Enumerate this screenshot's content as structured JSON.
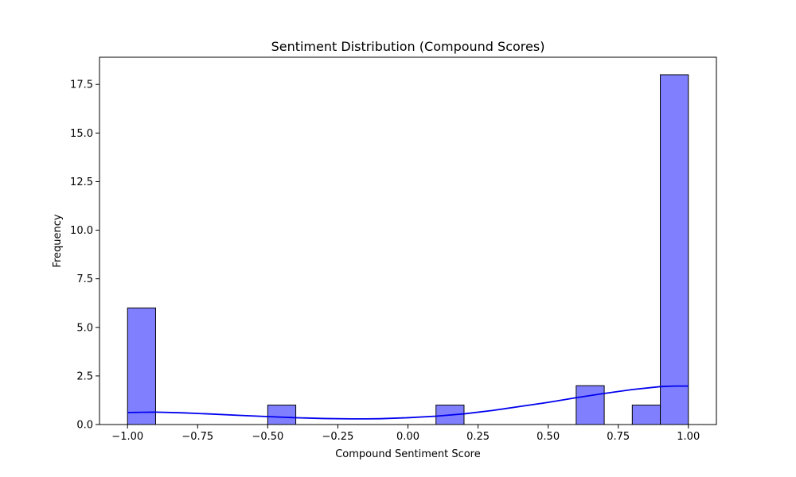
{
  "chart_data": {
    "type": "bar",
    "title": "Sentiment Distribution (Compound Scores)",
    "xlabel": "Compound Sentiment Score",
    "ylabel": "Frequency",
    "xlim": [
      -1.1,
      1.1
    ],
    "ylim": [
      0,
      18.9
    ],
    "xticks": [
      -1.0,
      -0.75,
      -0.5,
      -0.25,
      0.0,
      0.25,
      0.5,
      0.75,
      1.0
    ],
    "xtick_labels": [
      "−1.00",
      "−0.75",
      "−0.50",
      "−0.25",
      "0.00",
      "0.25",
      "0.50",
      "0.75",
      "1.00"
    ],
    "yticks": [
      0,
      2.5,
      5,
      7.5,
      10,
      12.5,
      15,
      17.5
    ],
    "ytick_labels": [
      "0.0",
      "2.5",
      "5.0",
      "7.5",
      "10.0",
      "12.5",
      "15.0",
      "17.5"
    ],
    "grid": false,
    "bar_color": "#8080ff",
    "bar_edge_color": "#000000",
    "kde_color": "#0000ee",
    "bins": [
      {
        "x0": -1.0,
        "x1": -0.9,
        "count": 6
      },
      {
        "x0": -0.5,
        "x1": -0.4,
        "count": 1
      },
      {
        "x0": 0.1,
        "x1": 0.2,
        "count": 1
      },
      {
        "x0": 0.6,
        "x1": 0.7,
        "count": 2
      },
      {
        "x0": 0.8,
        "x1": 0.9,
        "count": 1
      },
      {
        "x0": 0.9,
        "x1": 1.0,
        "count": 18
      }
    ],
    "kde": {
      "x": [
        -1.0,
        -0.9,
        -0.8,
        -0.7,
        -0.6,
        -0.5,
        -0.4,
        -0.3,
        -0.2,
        -0.15,
        -0.1,
        0.0,
        0.1,
        0.2,
        0.3,
        0.4,
        0.5,
        0.6,
        0.7,
        0.8,
        0.9,
        0.95,
        1.0
      ],
      "y": [
        0.62,
        0.64,
        0.6,
        0.54,
        0.47,
        0.41,
        0.35,
        0.31,
        0.29,
        0.29,
        0.3,
        0.35,
        0.43,
        0.55,
        0.72,
        0.93,
        1.14,
        1.38,
        1.6,
        1.8,
        1.95,
        1.98,
        1.98
      ]
    }
  }
}
